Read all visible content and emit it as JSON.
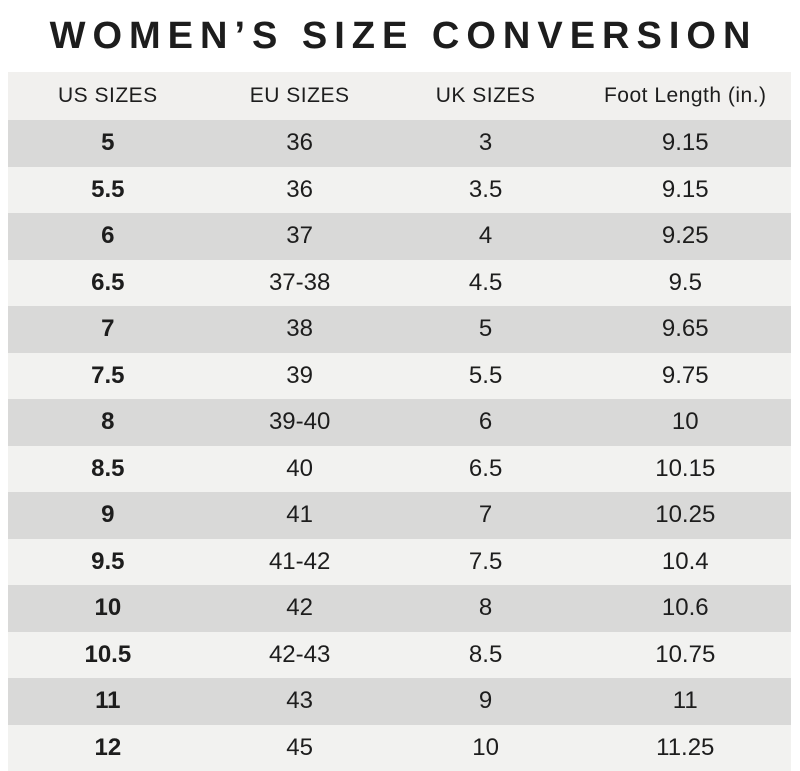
{
  "title": "WOMEN’S SIZE CONVERSION",
  "colors": {
    "text": "#1d1d1d",
    "header_bg": "#f1f0ee",
    "row_dark": "#d9d9d8",
    "row_light": "#f2f2f0"
  },
  "table": {
    "columns": [
      "US SIZES",
      "EU SIZES",
      "UK SIZES",
      "Foot Length (in.)"
    ],
    "rows": [
      [
        "5",
        "36",
        "3",
        "9.15"
      ],
      [
        "5.5",
        "36",
        "3.5",
        "9.15"
      ],
      [
        "6",
        "37",
        "4",
        "9.25"
      ],
      [
        "6.5",
        "37-38",
        "4.5",
        "9.5"
      ],
      [
        "7",
        "38",
        "5",
        "9.65"
      ],
      [
        "7.5",
        "39",
        "5.5",
        "9.75"
      ],
      [
        "8",
        "39-40",
        "6",
        "10"
      ],
      [
        "8.5",
        "40",
        "6.5",
        "10.15"
      ],
      [
        "9",
        "41",
        "7",
        "10.25"
      ],
      [
        "9.5",
        "41-42",
        "7.5",
        "10.4"
      ],
      [
        "10",
        "42",
        "8",
        "10.6"
      ],
      [
        "10.5",
        "42-43",
        "8.5",
        "10.75"
      ],
      [
        "11",
        "43",
        "9",
        "11"
      ],
      [
        "12",
        "45",
        "10",
        "11.25"
      ]
    ]
  }
}
